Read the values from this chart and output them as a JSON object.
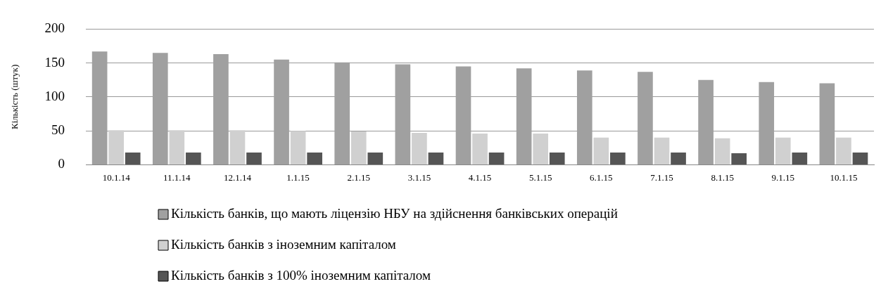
{
  "chart_data": {
    "type": "bar",
    "ylabel": "Кількість (штук)",
    "categories": [
      "10.1.14",
      "11.1.14",
      "12.1.14",
      "1.1.15",
      "2.1.15",
      "3.1.15",
      "4.1.15",
      "5.1.15",
      "6.1.15",
      "7.1.15",
      "8.1.15",
      "9.1.15",
      "10.1.15"
    ],
    "series": [
      {
        "name": "Кількість банків, що мають ліцензію НБУ на здійснення банківських операцій",
        "color": "#a0a0a0",
        "values": [
          167,
          165,
          163,
          155,
          151,
          148,
          145,
          142,
          139,
          137,
          125,
          122,
          120
        ]
      },
      {
        "name": "Кількість банків з іноземним капіталом",
        "color": "#d0d0d0",
        "values": [
          51,
          51,
          51,
          50,
          49,
          47,
          46,
          46,
          40,
          40,
          39,
          40,
          40
        ]
      },
      {
        "name": "Кількість банків з 100% іноземним капіталом",
        "color": "#555555",
        "values": [
          18,
          18,
          18,
          18,
          18,
          18,
          18,
          18,
          18,
          18,
          17,
          18,
          18
        ]
      }
    ],
    "ylim": [
      0,
      200
    ],
    "yticks": [
      0,
      50,
      100,
      150,
      200
    ],
    "grid": "y",
    "legend": "bottom"
  }
}
